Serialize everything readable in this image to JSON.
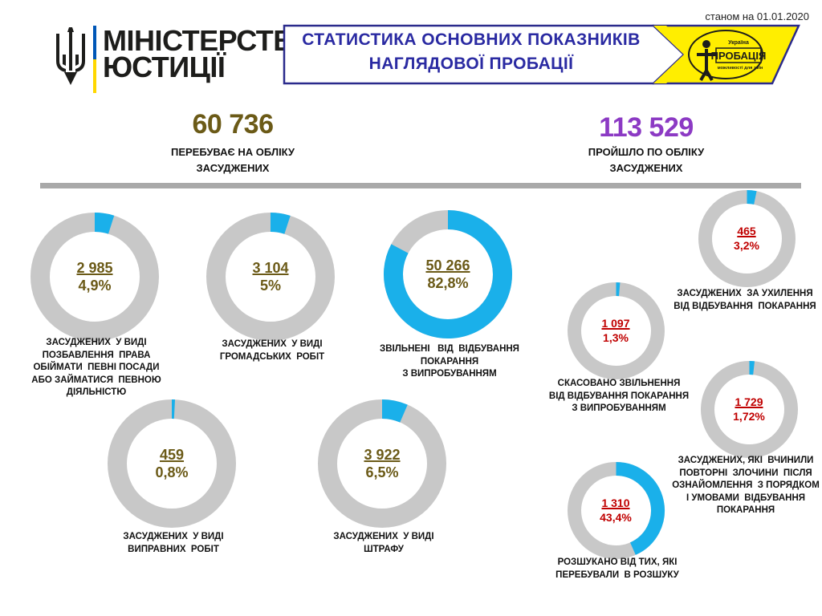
{
  "header": {
    "date": "станом на 01.01.2020",
    "ministry_line1": "МІНІСТЕРСТВО",
    "ministry_line2": "ЮСТИЦІЇ",
    "banner_line1": "СТАТИСТИКА ОСНОВНИХ ПОКАЗНИКІВ",
    "banner_line2": "НАГЛЯДОВОЇ ПРОБАЦІЇ",
    "logo_line1": "Україна",
    "logo_line2": "ПРОБАЦІЯ",
    "logo_line3": "можливості для змін"
  },
  "totals": {
    "on_register": "60 736",
    "on_register_label_1": "ПЕРЕБУВАЄ НА ОБЛІКУ",
    "on_register_label_2": "ЗАСУДЖЕНИХ",
    "passed": "113 529",
    "passed_label_1": "ПРОЙШЛО ПО ОБЛІКУ",
    "passed_label_2": "ЗАСУДЖЕНИХ"
  },
  "colors": {
    "accent_blue": "#1ab0ea",
    "ring_gray": "#c8c8c8",
    "olive_text": "#6b5a17",
    "red_text": "#c00000",
    "purple_text": "#8c3ac4",
    "banner_yellow": "#ffee00",
    "banner_border": "#2a2a8c"
  },
  "chart_data": [
    {
      "type": "pie",
      "value": "2 985",
      "percent": "4,9%",
      "fraction": 0.049,
      "caption": [
        "ЗАСУДЖЕНИХ  У ВИДІ",
        "ПОЗБАВЛЕННЯ  ПРАВА",
        "ОБІЙМАТИ  ПЕВНІ ПОСАДИ",
        "АБО ЗАЙМАТИСЯ  ПЕВНОЮ",
        "ДІЯЛЬНІСТЮ"
      ]
    },
    {
      "type": "pie",
      "value": "3 104",
      "percent": "5%",
      "fraction": 0.05,
      "caption": [
        "ЗАСУДЖЕНИХ  У ВИДІ",
        "ГРОМАДСЬКИХ  РОБІТ"
      ]
    },
    {
      "type": "pie",
      "value": "50 266",
      "percent": "82,8%",
      "fraction": 0.828,
      "caption": [
        "ЗВІЛЬНЕНІ   ВІД  ВІДБУВАННЯ",
        "ПОКАРАННЯ",
        "З ВИПРОБУВАННЯМ"
      ]
    },
    {
      "type": "pie",
      "value": "459",
      "percent": "0,8%",
      "fraction": 0.008,
      "caption": [
        "ЗАСУДЖЕНИХ  У ВИДІ",
        "ВИПРАВНИХ  РОБІТ"
      ]
    },
    {
      "type": "pie",
      "value": "3 922",
      "percent": "6,5%",
      "fraction": 0.065,
      "caption": [
        "ЗАСУДЖЕНИХ  У ВИДІ",
        "ШТРАФУ"
      ]
    },
    {
      "type": "pie",
      "value": "465",
      "percent": "3,2%",
      "fraction": 0.032,
      "caption": [
        "ЗАСУДЖЕНИХ  ЗА УХИЛЕННЯ",
        "ВІД ВІДБУВАННЯ  ПОКАРАННЯ"
      ]
    },
    {
      "type": "pie",
      "value": "1 097",
      "percent": "1,3%",
      "fraction": 0.013,
      "caption": [
        "СКАСОВАНО ЗВІЛЬНЕННЯ",
        "ВІД ВІДБУВАННЯ ПОКАРАННЯ",
        "З ВИПРОБУВАННЯМ"
      ]
    },
    {
      "type": "pie",
      "value": "1 729",
      "percent": "1,72%",
      "fraction": 0.0172,
      "caption": [
        "ЗАСУДЖЕНИХ, ЯКІ  ВЧИНИЛИ",
        "ПОВТОРНІ  ЗЛОЧИНИ  ПІСЛЯ",
        "ОЗНАЙОМЛЕННЯ  З ПОРЯДКОМ",
        "І УМОВАМИ  ВІДБУВАННЯ",
        "ПОКАРАННЯ"
      ]
    },
    {
      "type": "pie",
      "value": "1 310",
      "percent": "43,4%",
      "fraction": 0.434,
      "caption": [
        "РОЗШУКАНО ВІД ТИХ, ЯКІ",
        "ПЕРЕБУВАЛИ  В РОЗШУКУ"
      ]
    }
  ]
}
